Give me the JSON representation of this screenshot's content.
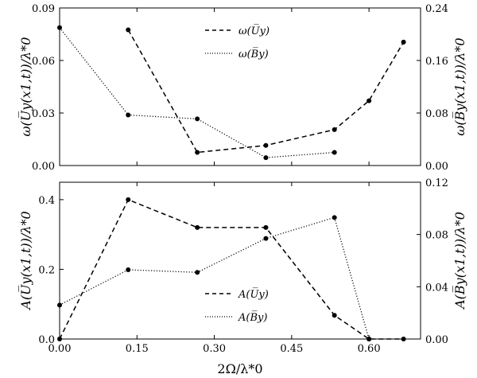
{
  "chart_data": [
    {
      "type": "line",
      "x": [
        0.0,
        0.133,
        0.267,
        0.4,
        0.533,
        0.6,
        0.667
      ],
      "xticks": [
        "0.00",
        "0.15",
        "0.30",
        "0.45",
        "0.60"
      ],
      "xtick_values": [
        0.0,
        0.15,
        0.3,
        0.45,
        0.6
      ],
      "xlim": [
        0.0,
        0.7
      ],
      "ylabel_left": "ω(U̅y(x1,t))/λ*0",
      "ylabel_right": "ω(B̅y(x1,t))/λ*0",
      "ylim_left": [
        0.0,
        0.09
      ],
      "ylim_right": [
        0.0,
        0.24
      ],
      "yticks_left": [
        "0.00",
        "0.03",
        "0.06",
        "0.09"
      ],
      "yticks_right": [
        "0.00",
        "0.08",
        "0.16",
        "0.24"
      ],
      "series": [
        {
          "name": "ω(U̅y)",
          "axis": "left",
          "style": "dashed",
          "x": [
            0.133,
            0.267,
            0.4,
            0.533,
            0.6,
            0.667
          ],
          "values": [
            0.0775,
            0.0075,
            0.0115,
            0.0205,
            0.037,
            0.0705
          ]
        },
        {
          "name": "ω(B̅y)",
          "axis": "right",
          "style": "dotted",
          "x": [
            0.0,
            0.133,
            0.267,
            0.4,
            0.533
          ],
          "values": [
            0.21,
            0.077,
            0.071,
            0.012,
            0.02
          ]
        }
      ],
      "legend_position": "top-center"
    },
    {
      "type": "line",
      "x": [
        0.0,
        0.133,
        0.267,
        0.4,
        0.533,
        0.6,
        0.667
      ],
      "xticks": [
        "0.00",
        "0.15",
        "0.30",
        "0.45",
        "0.60"
      ],
      "xtick_values": [
        0.0,
        0.15,
        0.3,
        0.45,
        0.6
      ],
      "xlim": [
        0.0,
        0.7
      ],
      "xlabel": "2Ω/λ*0",
      "ylabel_left": "A(U̅y(x1,t))/λ*0",
      "ylabel_right": "A(B̅y(x1,t))/λ*0",
      "ylim_left": [
        0.0,
        0.45
      ],
      "ylim_right": [
        0.0,
        0.12
      ],
      "yticks_left": [
        "0.0",
        "0.2",
        "0.4"
      ],
      "ytick_values_left": [
        0.0,
        0.2,
        0.4
      ],
      "yticks_right": [
        "0.00",
        "0.04",
        "0.08",
        "0.12"
      ],
      "series": [
        {
          "name": "A(U̅y)",
          "axis": "left",
          "style": "dashed",
          "x": [
            0.0,
            0.133,
            0.267,
            0.4,
            0.533,
            0.6,
            0.667
          ],
          "values": [
            0.0,
            0.4,
            0.32,
            0.32,
            0.068,
            0.0,
            0.0
          ]
        },
        {
          "name": "A(B̅y)",
          "axis": "right",
          "style": "dotted",
          "x": [
            0.0,
            0.133,
            0.267,
            0.4,
            0.533,
            0.6
          ],
          "values": [
            0.026,
            0.053,
            0.051,
            0.077,
            0.093,
            0.0
          ]
        }
      ],
      "legend_position": "bottom-center"
    }
  ],
  "colors": {
    "line": "#000000",
    "background": "#ffffff"
  }
}
